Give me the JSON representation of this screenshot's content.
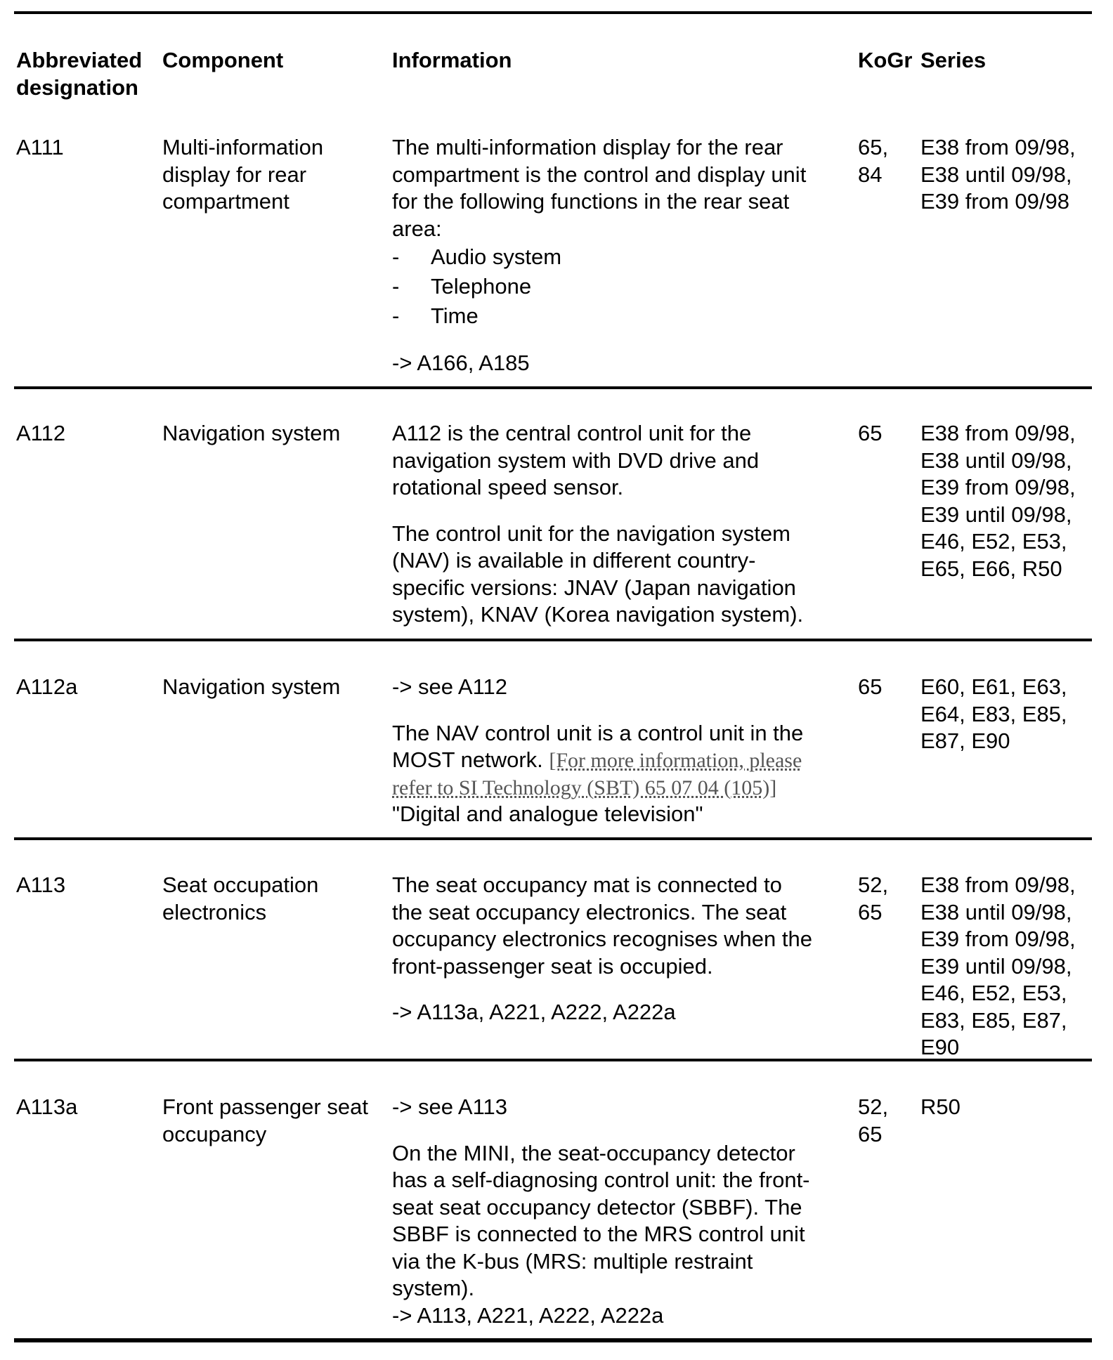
{
  "header": {
    "columns": [
      [
        "Abbreviated",
        "designation"
      ],
      [
        "Component"
      ],
      [
        "Information"
      ],
      [
        "KoGr"
      ],
      [
        "Series"
      ]
    ]
  },
  "rows": [
    {
      "designation": [
        "A111"
      ],
      "component": [
        "Multi-information",
        "display for rear",
        "compartment"
      ],
      "info": [
        [
          "The multi-information display for the rear",
          "compartment is the control and display unit",
          "for the following functions in the rear seat",
          "area:",
          {
            "bullet": "-",
            "text": "Audio system"
          },
          {
            "bullet": "-",
            "text": "Telephone"
          },
          {
            "bullet": "-",
            "text": "Time"
          }
        ],
        [
          "-> A166, A185"
        ]
      ],
      "kogr": [
        "65,",
        "84"
      ],
      "series": [
        "E38 from 09/98,",
        "E38 until 09/98,",
        "E39 from 09/98"
      ]
    },
    {
      "designation": [
        "A112"
      ],
      "component": [
        "Navigation system"
      ],
      "info": [
        [
          "A112 is the central control unit for the",
          "navigation system with DVD drive and",
          "rotational speed sensor."
        ],
        [
          "The control unit for the navigation system",
          "(NAV) is available in different country-",
          "specific versions: JNAV (Japan navigation",
          "system), KNAV (Korea navigation system)."
        ]
      ],
      "kogr": [
        "65"
      ],
      "series": [
        "E38 from 09/98,",
        "E38 until 09/98,",
        "E39 from 09/98,",
        "E39 until 09/98,",
        "E46, E52, E53,",
        "E65, E66, R50"
      ]
    },
    {
      "designation": [
        "A112a"
      ],
      "component": [
        "Navigation system"
      ],
      "info": [
        [
          "-> see A112"
        ],
        [
          "The NAV control unit is a control unit in the",
          {
            "segments": [
              {
                "text": "MOST network. "
              },
              {
                "text": "[For more information, please",
                "link": true
              }
            ]
          },
          {
            "segments": [
              {
                "text": "refer to SI Technology (SBT) 65 07 04 (105)]",
                "link": true
              }
            ]
          },
          "\"Digital and analogue television\""
        ]
      ],
      "kogr": [
        "65"
      ],
      "series": [
        "E60, E61, E63,",
        "E64, E83, E85,",
        "E87, E90"
      ]
    },
    {
      "designation": [
        "A113"
      ],
      "component": [
        "Seat occupation",
        "electronics"
      ],
      "info": [
        [
          "The seat occupancy mat is connected to",
          "the seat occupancy electronics. The seat",
          "occupancy electronics recognises when the",
          "front-passenger seat is occupied."
        ],
        [
          "-> A113a, A221, A222, A222a"
        ]
      ],
      "kogr": [
        "52,",
        "65"
      ],
      "series": [
        "E38 from 09/98,",
        "E38 until 09/98,",
        "E39 from 09/98,",
        "E39 until 09/98,",
        "E46, E52, E53,",
        "E83, E85, E87,",
        "E90"
      ]
    },
    {
      "designation": [
        "A113a"
      ],
      "component": [
        "Front passenger seat",
        "occupancy"
      ],
      "info": [
        [
          "-> see A113"
        ],
        [
          "On the MINI, the seat-occupancy detector",
          "has a self-diagnosing control unit: the front-",
          "seat seat occupancy detector (SBBF). The",
          "SBBF is connected to the MRS control unit",
          "via the K-bus (MRS: multiple restraint",
          "system).",
          "-> A113, A221, A222, A222a"
        ]
      ],
      "kogr": [
        "52,",
        "65"
      ],
      "series": [
        "R50"
      ]
    }
  ]
}
